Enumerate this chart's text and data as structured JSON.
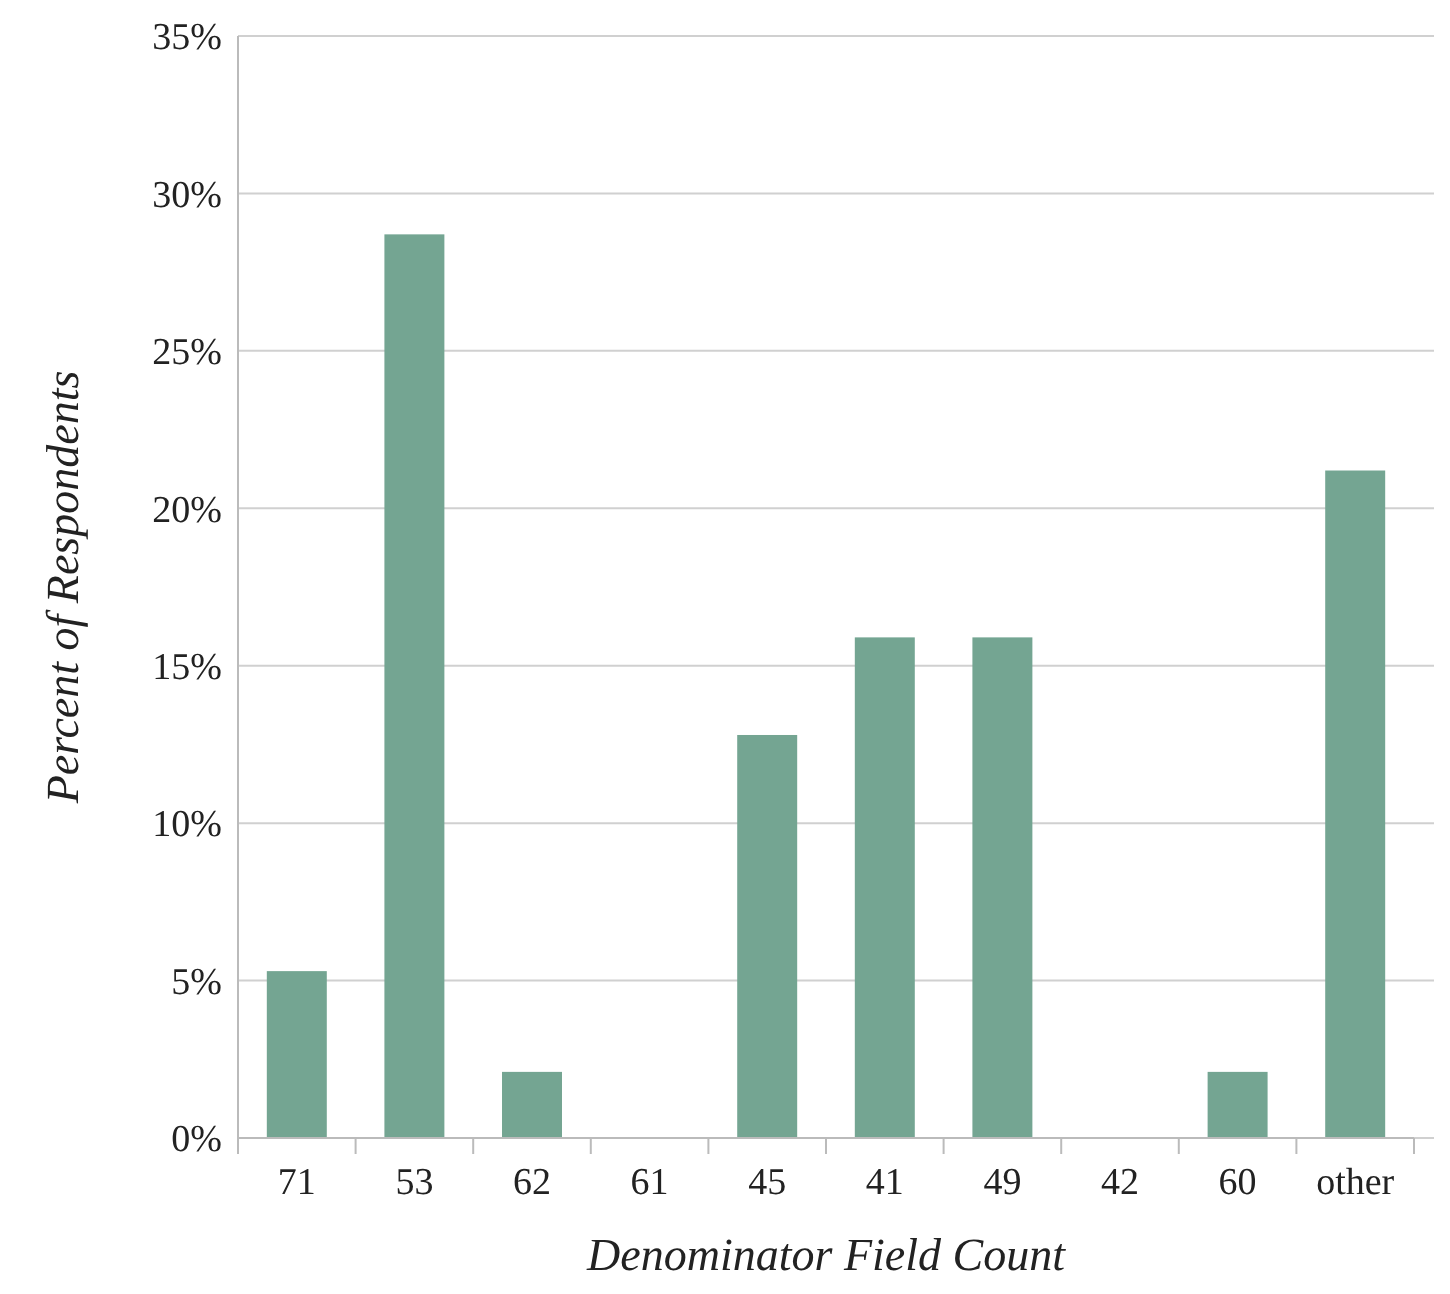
{
  "chart_data": {
    "type": "bar",
    "xlabel": "Denominator Field Count",
    "ylabel": "Percent of Respondents",
    "categories": [
      "71",
      "53",
      "62",
      "61",
      "45",
      "41",
      "49",
      "42",
      "60",
      "other"
    ],
    "values": [
      5.3,
      28.7,
      2.1,
      0,
      12.8,
      15.9,
      15.9,
      0,
      2.1,
      21.2
    ],
    "color": "#74a592",
    "ylim": [
      0,
      35
    ],
    "yticks": [
      {
        "value": 0,
        "label": "0%"
      },
      {
        "value": 5,
        "label": "5%"
      },
      {
        "value": 10,
        "label": "10%"
      },
      {
        "value": 15,
        "label": "15%"
      },
      {
        "value": 20,
        "label": "20%"
      },
      {
        "value": 25,
        "label": "25%"
      },
      {
        "value": 30,
        "label": "30%"
      },
      {
        "value": 35,
        "label": "35%"
      }
    ],
    "grid": "y"
  }
}
